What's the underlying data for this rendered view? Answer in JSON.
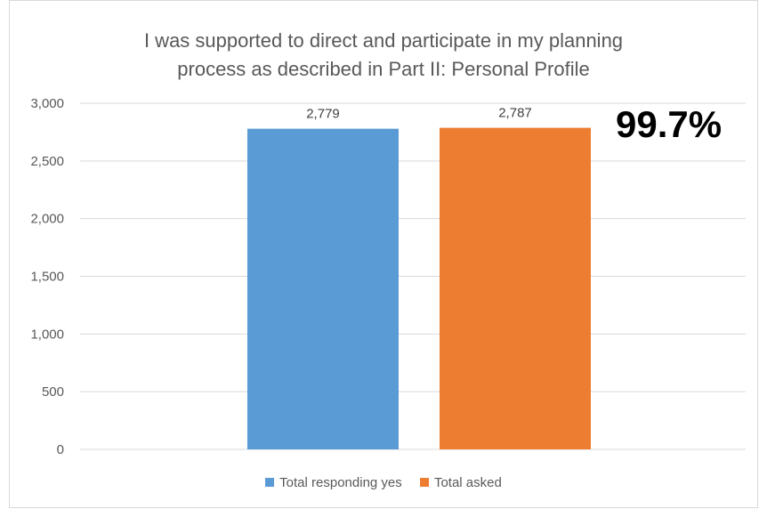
{
  "chart_data": {
    "type": "bar",
    "title": "I was supported to direct and participate in my planning process as described in Part II: Personal Profile",
    "title_lines": [
      "I was supported to direct and participate in my planning",
      "process as described in Part II: Personal Profile"
    ],
    "categories": [
      "Total responding yes",
      "Total asked"
    ],
    "values": [
      2779,
      2787
    ],
    "value_labels": [
      "2,779",
      "2,787"
    ],
    "colors": [
      "#5b9bd5",
      "#ed7d31"
    ],
    "ylim": [
      0,
      3000
    ],
    "yticks": [
      0,
      500,
      1000,
      1500,
      2000,
      2500,
      3000
    ],
    "ytick_labels": [
      "0",
      "500",
      "1,000",
      "1,500",
      "2,000",
      "2,500",
      "3,000"
    ],
    "grid": true,
    "legend": {
      "position": "bottom",
      "entries": [
        "Total responding yes",
        "Total asked"
      ]
    },
    "annotation": "99.7%"
  },
  "colors": {
    "grid": "#d9d9d9",
    "text": "#595959"
  }
}
